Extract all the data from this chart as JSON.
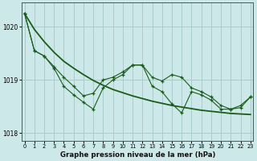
{
  "title": "Graphe pression niveau de la mer (hPa)",
  "bg_color": "#cce8e8",
  "grid_color": "#aacccc",
  "line_color": "#1a5c1a",
  "x_ticks": [
    0,
    1,
    2,
    3,
    4,
    5,
    6,
    7,
    8,
    9,
    10,
    11,
    12,
    13,
    14,
    15,
    16,
    17,
    18,
    19,
    20,
    21,
    22,
    23
  ],
  "y_ticks": [
    1018,
    1019,
    1020
  ],
  "ylim": [
    1017.85,
    1020.45
  ],
  "xlim": [
    -0.3,
    23.3
  ],
  "series1": [
    1020.25,
    1019.55,
    1019.45,
    1019.25,
    1019.05,
    1018.88,
    1018.7,
    1018.75,
    1019.0,
    1019.05,
    1019.15,
    1019.28,
    1019.28,
    1019.05,
    1018.98,
    1019.1,
    1019.05,
    1018.85,
    1018.78,
    1018.68,
    1018.52,
    1018.45,
    1018.52,
    1018.68
  ],
  "series2": [
    1020.25,
    1019.55,
    1019.45,
    1019.22,
    1018.88,
    1018.72,
    1018.58,
    1018.45,
    1018.85,
    1019.0,
    1019.1,
    1019.28,
    1019.28,
    1018.88,
    1018.78,
    1018.55,
    1018.38,
    1018.78,
    1018.72,
    1018.62,
    1018.45,
    1018.45,
    1018.48,
    1018.68
  ],
  "series_smooth": [
    1020.25,
    1019.95,
    1019.72,
    1019.52,
    1019.35,
    1019.22,
    1019.1,
    1018.99,
    1018.9,
    1018.82,
    1018.76,
    1018.7,
    1018.65,
    1018.6,
    1018.56,
    1018.52,
    1018.49,
    1018.46,
    1018.43,
    1018.41,
    1018.39,
    1018.37,
    1018.36,
    1018.35
  ]
}
